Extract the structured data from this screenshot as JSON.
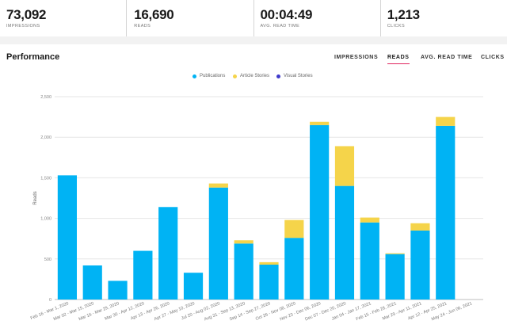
{
  "stats": [
    {
      "value": "73,092",
      "label": "Impressions"
    },
    {
      "value": "16,690",
      "label": "Reads"
    },
    {
      "value": "00:04:49",
      "label": "Avg. read time"
    },
    {
      "value": "1,213",
      "label": "Clicks"
    }
  ],
  "performance": {
    "title": "Performance",
    "tabs": [
      "IMPRESSIONS",
      "READS",
      "AVG. READ TIME",
      "CLICKS"
    ],
    "active_tab": "READS"
  },
  "colors": {
    "publications": "#00b3f4",
    "article_stories": "#f5d44a",
    "visual_stories": "#3f3acb",
    "active_tab_underline": "#e0245e",
    "gridline": "#e6e6e6"
  },
  "chart_data": {
    "type": "bar",
    "stacked": true,
    "title": "",
    "xlabel": "",
    "ylabel": "Reads",
    "ylim": [
      0,
      2500
    ],
    "yticks": [
      0,
      500,
      1000,
      1500,
      2000,
      2500
    ],
    "ytick_labels": [
      "0",
      "500",
      "1,000",
      "1,500",
      "2,000",
      "2,500"
    ],
    "grid": true,
    "legend_position": "top-center",
    "categories": [
      "Feb 16 - Mar 1, 2020",
      "Mar 02 - Mar 15, 2020",
      "Mar 16 - Mar 29, 2020",
      "Mar 30 - Apr 12, 2020",
      "Apr 13 - Apr 26, 2020",
      "Apr 27 - May 10, 2020",
      "Jul 20 - Aug 02, 2020",
      "Aug 31 - Sep 13, 2020",
      "Sep 14 - Sep 27, 2020",
      "Oct 26 - Nov 08, 2020",
      "Nov 23 - Dec 06, 2020",
      "Dec 07 - Dec 20, 2020",
      "Jan 04 - Jan 17, 2021",
      "Feb 15 - Feb 28, 2021",
      "Mar 29 - Apr 11, 2021",
      "Apr 12 - Apr 25, 2021",
      "May 24 - Jun 06, 2021"
    ],
    "series": [
      {
        "name": "Publications",
        "values": [
          1530,
          420,
          230,
          600,
          1140,
          330,
          1380,
          690,
          430,
          760,
          2150,
          1400,
          950,
          560,
          850,
          2140,
          0
        ]
      },
      {
        "name": "Article Stories",
        "values": [
          0,
          0,
          0,
          0,
          0,
          0,
          50,
          40,
          30,
          220,
          40,
          490,
          60,
          10,
          90,
          110,
          0
        ]
      },
      {
        "name": "Visual Stories",
        "values": [
          0,
          0,
          0,
          0,
          0,
          0,
          0,
          0,
          0,
          0,
          0,
          0,
          0,
          0,
          0,
          0,
          0
        ]
      }
    ]
  }
}
